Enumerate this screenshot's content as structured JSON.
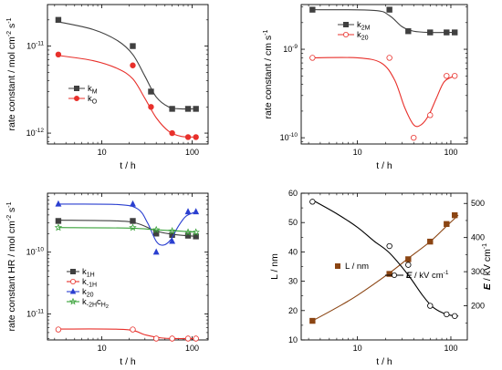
{
  "chart_data": [
    {
      "type": "line",
      "id": "p1",
      "xscale": "log",
      "yscale": "log",
      "xlim": [
        2.5,
        150
      ],
      "ylim": [
        7.5e-13,
        3e-11
      ],
      "xticks": [
        {
          "v": 10,
          "label": "10"
        },
        {
          "v": 100,
          "label": "100"
        }
      ],
      "yticks": [
        {
          "v": 1e-12,
          "base": "10",
          "exp": "-12"
        },
        {
          "v": 1e-11,
          "base": "10",
          "exp": "-11"
        }
      ],
      "xlabel": "t / h",
      "ylabel": {
        "pre": "rate constant / mol cm",
        "sup1": "-2",
        "mid": " s",
        "sup2": "-1"
      },
      "series": [
        {
          "name": "k",
          "sub": "M",
          "color": "#404040",
          "marker": "square",
          "fill": true,
          "points": [
            [
              3.3,
              2e-11
            ],
            [
              22,
              1e-11
            ],
            [
              35,
              3e-12
            ],
            [
              60,
              1.9e-12
            ],
            [
              90,
              1.9e-12
            ],
            [
              110,
              1.9e-12
            ]
          ],
          "fit": [
            [
              3.3,
              1.9e-11
            ],
            [
              8,
              1.55e-11
            ],
            [
              15,
              1.15e-11
            ],
            [
              22,
              8e-12
            ],
            [
              30,
              4.5e-12
            ],
            [
              40,
              2.6e-12
            ],
            [
              55,
              2e-12
            ],
            [
              75,
              1.9e-12
            ],
            [
              110,
              1.9e-12
            ]
          ]
        },
        {
          "name": "k",
          "sub": "O",
          "color": "#e8302b",
          "marker": "circle",
          "fill": true,
          "points": [
            [
              3.3,
              8e-12
            ],
            [
              22,
              6e-12
            ],
            [
              35,
              2e-12
            ],
            [
              60,
              1e-12
            ],
            [
              90,
              9e-13
            ],
            [
              110,
              9e-13
            ]
          ],
          "fit": [
            [
              3.3,
              7.8e-12
            ],
            [
              8,
              6.8e-12
            ],
            [
              15,
              5.5e-12
            ],
            [
              22,
              4.2e-12
            ],
            [
              30,
              2.5e-12
            ],
            [
              40,
              1.5e-12
            ],
            [
              55,
              1.05e-12
            ],
            [
              75,
              9.2e-13
            ],
            [
              110,
              9e-13
            ]
          ]
        }
      ]
    },
    {
      "type": "line",
      "id": "p2",
      "xscale": "log",
      "yscale": "log",
      "xlim": [
        2.5,
        150
      ],
      "ylim": [
        8.5e-11,
        3.2e-09
      ],
      "xticks": [
        {
          "v": 10,
          "label": "10"
        },
        {
          "v": 100,
          "label": "100"
        }
      ],
      "yticks": [
        {
          "v": 1e-10,
          "base": "10",
          "exp": "-10"
        },
        {
          "v": 1e-09,
          "base": "10",
          "exp": "-9"
        }
      ],
      "xlabel": "t / h",
      "ylabel": {
        "pre": "rate constant / cm s",
        "sup1": "-1",
        "mid": "",
        "sup2": ""
      },
      "series": [
        {
          "name": "k",
          "sub": "2M",
          "color": "#404040",
          "marker": "square",
          "fill": true,
          "points": [
            [
              3.3,
              2.8e-09
            ],
            [
              22,
              2.8e-09
            ],
            [
              35,
              1.6e-09
            ],
            [
              60,
              1.55e-09
            ],
            [
              90,
              1.55e-09
            ],
            [
              110,
              1.55e-09
            ]
          ],
          "fit": [
            [
              3.3,
              2.8e-09
            ],
            [
              15,
              2.75e-09
            ],
            [
              22,
              2.4e-09
            ],
            [
              30,
              1.8e-09
            ],
            [
              40,
              1.6e-09
            ],
            [
              60,
              1.55e-09
            ],
            [
              110,
              1.55e-09
            ]
          ]
        },
        {
          "name": "k",
          "sub": "20",
          "color": "#e8302b",
          "marker": "circle",
          "fill": false,
          "points": [
            [
              3.3,
              8e-10
            ],
            [
              22,
              8e-10
            ],
            [
              40,
              1e-10
            ],
            [
              60,
              1.8e-10
            ],
            [
              90,
              5e-10
            ],
            [
              110,
              5e-10
            ]
          ],
          "fit": [
            [
              3.3,
              8e-10
            ],
            [
              10,
              8e-10
            ],
            [
              18,
              7e-10
            ],
            [
              25,
              4.5e-10
            ],
            [
              32,
              2.2e-10
            ],
            [
              40,
              1.4e-10
            ],
            [
              48,
              1.4e-10
            ],
            [
              58,
              1.8e-10
            ],
            [
              70,
              2.8e-10
            ],
            [
              85,
              4.3e-10
            ],
            [
              110,
              5e-10
            ]
          ]
        }
      ]
    },
    {
      "type": "line",
      "id": "p3",
      "xscale": "log",
      "yscale": "log",
      "xlim": [
        2.5,
        150
      ],
      "ylim": [
        3.8e-12,
        9e-10
      ],
      "xticks": [
        {
          "v": 10,
          "label": "10"
        },
        {
          "v": 100,
          "label": "100"
        }
      ],
      "yticks": [
        {
          "v": 1e-11,
          "base": "10",
          "exp": "-11"
        },
        {
          "v": 1e-10,
          "base": "10",
          "exp": "-10"
        }
      ],
      "xlabel": "t / h",
      "ylabel": {
        "pre": "rate constant HR / mol cm",
        "sup1": "-2",
        "mid": " s",
        "sup2": "-1"
      },
      "series": [
        {
          "name": "k",
          "sub": "1H",
          "color": "#404040",
          "marker": "square",
          "fill": true,
          "points": [
            [
              3.3,
              3.2e-10
            ],
            [
              22,
              3.2e-10
            ],
            [
              40,
              2e-10
            ],
            [
              60,
              1.9e-10
            ],
            [
              90,
              1.85e-10
            ],
            [
              110,
              1.8e-10
            ]
          ],
          "fit": [
            [
              3.3,
              3.3e-10
            ],
            [
              15,
              3.2e-10
            ],
            [
              25,
              2.9e-10
            ],
            [
              40,
              2.2e-10
            ],
            [
              60,
              1.95e-10
            ],
            [
              110,
              1.8e-10
            ]
          ]
        },
        {
          "name": "k",
          "sub": "-1H",
          "color": "#e8302b",
          "marker": "circle",
          "fill": false,
          "points": [
            [
              3.3,
              5.6e-12
            ],
            [
              22,
              5.6e-12
            ],
            [
              40,
              4e-12
            ],
            [
              60,
              4e-12
            ],
            [
              90,
              4e-12
            ],
            [
              110,
              4e-12
            ]
          ],
          "fit": [
            [
              3.3,
              5.7e-12
            ],
            [
              18,
              5.6e-12
            ],
            [
              30,
              4.6e-12
            ],
            [
              45,
              4.1e-12
            ],
            [
              70,
              4e-12
            ],
            [
              110,
              4e-12
            ]
          ]
        },
        {
          "name": "k",
          "sub": "20",
          "color": "#2a3fd0",
          "marker": "triangle",
          "fill": true,
          "points": [
            [
              3.3,
              6e-10
            ],
            [
              22,
              6e-10
            ],
            [
              40,
              1e-10
            ],
            [
              60,
              1.5e-10
            ],
            [
              90,
              4.5e-10
            ],
            [
              110,
              4.5e-10
            ]
          ],
          "fit": [
            [
              3.3,
              6e-10
            ],
            [
              15,
              5.9e-10
            ],
            [
              25,
              5e-10
            ],
            [
              32,
              3e-10
            ],
            [
              40,
              1.5e-10
            ],
            [
              48,
              1.3e-10
            ],
            [
              58,
              1.6e-10
            ],
            [
              70,
              2.6e-10
            ],
            [
              85,
              3.8e-10
            ],
            [
              110,
              4.5e-10
            ]
          ]
        },
        {
          "name": "k",
          "sub": "-2H",
          "extra": "c",
          "extraSub": "H",
          "extraSub2": "2",
          "color": "#3aa23a",
          "marker": "star",
          "fill": false,
          "points": [
            [
              3.3,
              2.5e-10
            ],
            [
              22,
              2.5e-10
            ],
            [
              40,
              2.3e-10
            ],
            [
              60,
              2.2e-10
            ],
            [
              90,
              2.1e-10
            ],
            [
              110,
              2.1e-10
            ]
          ],
          "fit": [
            [
              3.3,
              2.5e-10
            ],
            [
              20,
              2.45e-10
            ],
            [
              40,
              2.3e-10
            ],
            [
              70,
              2.2e-10
            ],
            [
              110,
              2.1e-10
            ]
          ]
        }
      ]
    },
    {
      "type": "line",
      "id": "p4",
      "xscale": "log",
      "yscale": "linear",
      "y2scale": "linear",
      "xlim": [
        2.5,
        150
      ],
      "ylim": [
        10,
        60
      ],
      "y2lim": [
        100,
        530
      ],
      "xticks": [
        {
          "v": 10,
          "label": "10"
        },
        {
          "v": 100,
          "label": "100"
        }
      ],
      "yticks": [
        10,
        20,
        30,
        40,
        50,
        60
      ],
      "y2ticks": [
        200,
        300,
        400,
        500
      ],
      "xlabel": "t / h",
      "ylabel": "L / nm",
      "y2label": {
        "pre": "E",
        "mid": " / kV cm",
        "sup": "-1"
      },
      "series": [
        {
          "name": "L / nm",
          "color": "#8b4513",
          "marker": "square",
          "fill": true,
          "axis": "left",
          "points": [
            [
              3.3,
              16.5
            ],
            [
              22,
              32.5
            ],
            [
              35,
              37.5
            ],
            [
              60,
              43.5
            ],
            [
              90,
              49.5
            ],
            [
              110,
              52.5
            ]
          ],
          "fit": [
            [
              3.3,
              16.5
            ],
            [
              6,
              21
            ],
            [
              10,
              25.2
            ],
            [
              22,
              32.8
            ],
            [
              35,
              37.8
            ],
            [
              60,
              43.5
            ],
            [
              90,
              48.8
            ],
            [
              120,
              52.5
            ]
          ]
        },
        {
          "name": "E",
          "unit": " / kV cm",
          "sup": "-1",
          "color": "#000000",
          "marker": "circle",
          "fill": false,
          "axis": "right",
          "points": [
            [
              3.3,
              505
            ],
            [
              22,
              375
            ],
            [
              35,
              320
            ],
            [
              60,
              200
            ],
            [
              90,
              175
            ],
            [
              110,
              170
            ]
          ],
          "fit": [
            [
              3.3,
              510
            ],
            [
              6,
              470
            ],
            [
              10,
              430
            ],
            [
              15,
              390
            ],
            [
              22,
              355
            ],
            [
              35,
              290
            ],
            [
              50,
              230
            ],
            [
              65,
              195
            ],
            [
              90,
              175
            ],
            [
              120,
              170
            ]
          ]
        }
      ]
    }
  ]
}
